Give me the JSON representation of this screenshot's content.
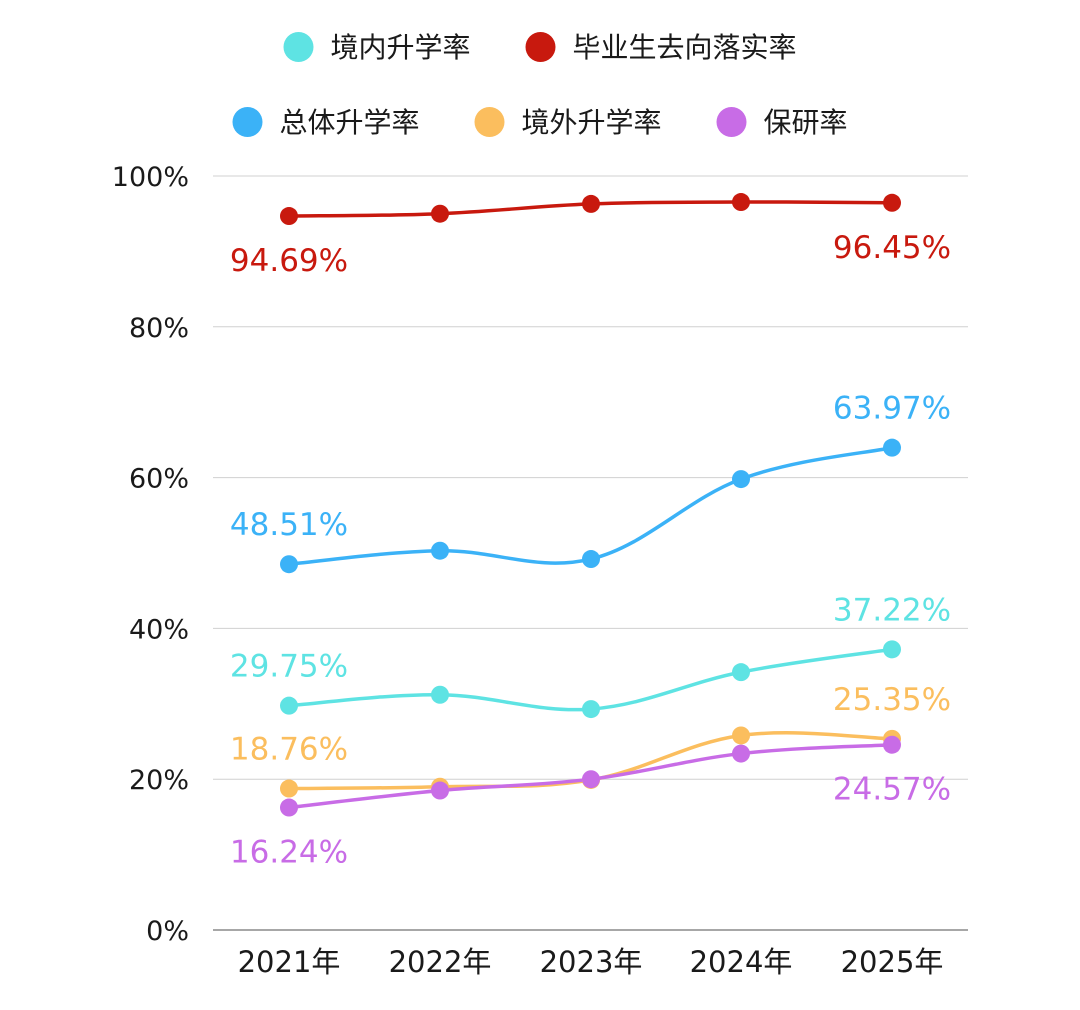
{
  "chart_data": {
    "type": "line",
    "categories": [
      "2021年",
      "2022年",
      "2023年",
      "2024年",
      "2025年"
    ],
    "ylim": [
      0,
      100
    ],
    "y_ticks": [
      0,
      20,
      40,
      60,
      80,
      100
    ],
    "y_tick_labels": [
      "0%",
      "20%",
      "40%",
      "60%",
      "80%",
      "100%"
    ],
    "grid": true,
    "legend_position": "top",
    "legend_rows": [
      [
        0,
        1
      ],
      [
        2,
        3,
        4
      ]
    ],
    "series": [
      {
        "name": "境内升学率",
        "color": "#5EE3E3",
        "values": [
          29.75,
          31.2,
          29.3,
          34.2,
          37.22
        ]
      },
      {
        "name": "毕业生去向落实率",
        "color": "#C8190E",
        "values": [
          94.69,
          95.0,
          96.3,
          96.55,
          96.45
        ]
      },
      {
        "name": "总体升学率",
        "color": "#3BB2F7",
        "values": [
          48.51,
          50.3,
          49.2,
          59.8,
          63.97
        ]
      },
      {
        "name": "境外升学率",
        "color": "#FBBE5E",
        "values": [
          18.76,
          19.0,
          19.9,
          25.8,
          25.35
        ]
      },
      {
        "name": "保研率",
        "color": "#C86CE6",
        "values": [
          16.24,
          18.5,
          20.0,
          23.4,
          24.57
        ]
      }
    ],
    "data_labels": [
      {
        "series": 1,
        "index": 0,
        "text": "94.69%",
        "placement": "below"
      },
      {
        "series": 1,
        "index": 4,
        "text": "96.45%",
        "placement": "below"
      },
      {
        "series": 2,
        "index": 0,
        "text": "48.51%",
        "placement": "above"
      },
      {
        "series": 2,
        "index": 4,
        "text": "63.97%",
        "placement": "above"
      },
      {
        "series": 0,
        "index": 0,
        "text": "29.75%",
        "placement": "above"
      },
      {
        "series": 0,
        "index": 4,
        "text": "37.22%",
        "placement": "above"
      },
      {
        "series": 3,
        "index": 0,
        "text": "18.76%",
        "placement": "above"
      },
      {
        "series": 3,
        "index": 4,
        "text": "25.35%",
        "placement": "above"
      },
      {
        "series": 4,
        "index": 0,
        "text": "16.24%",
        "placement": "below"
      },
      {
        "series": 4,
        "index": 4,
        "text": "24.57%",
        "placement": "below"
      }
    ]
  }
}
